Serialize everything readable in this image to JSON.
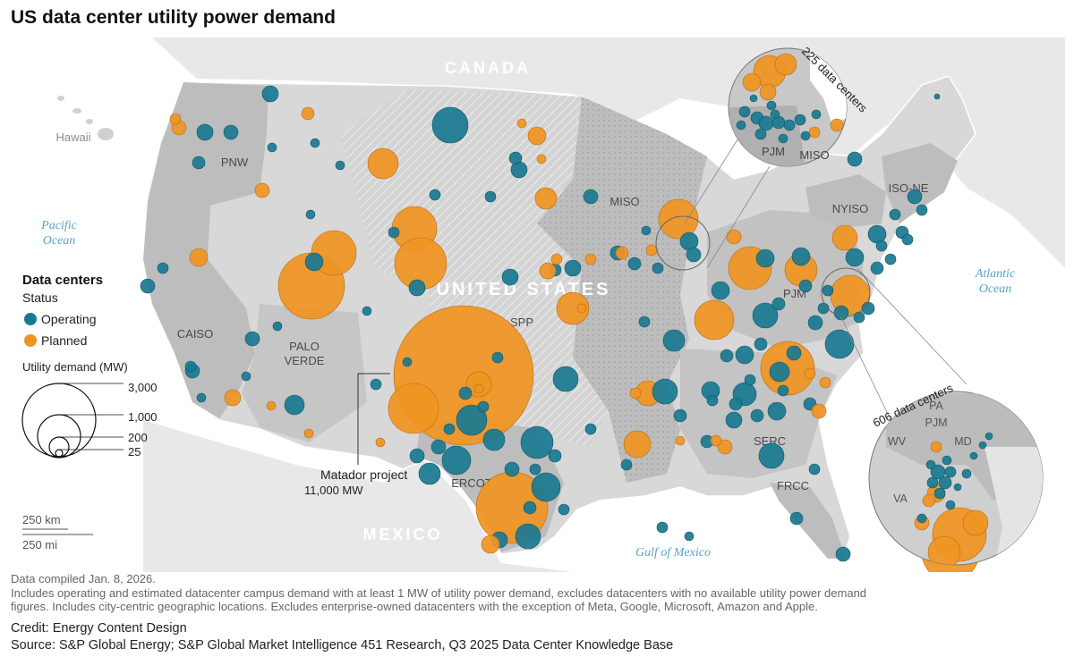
{
  "title": "US data center utility power demand",
  "labels": {
    "countries": {
      "canada": "CANADA",
      "mexico": "MEXICO",
      "us": "UNITED STATES"
    },
    "waters": {
      "pacific": "Pacific Ocean",
      "atlantic": "Atlantic Ocean",
      "gulf": "Gulf of Mexico"
    },
    "hawaii": "Hawaii",
    "regions": {
      "pnw": "PNW",
      "caiso": "CAISO",
      "palo_verde_1": "PALO",
      "palo_verde_2": "VERDE",
      "spp": "SPP",
      "miso": "MISO",
      "pjm": "PJM",
      "nyiso": "NYISO",
      "isone": "ISO-NE",
      "ercot": "ERCOT",
      "serc": "SERC",
      "frcc": "FRCC"
    }
  },
  "legend": {
    "heading": "Data centers",
    "status_label": "Status",
    "operating": "Operating",
    "planned": "Planned",
    "size_label": "Utility demand (MW)",
    "sizes": [
      "3,000",
      "1,000",
      "200",
      "25"
    ]
  },
  "annotation": {
    "name": "Matador project",
    "value": "11,000 MW"
  },
  "insets": {
    "top": {
      "count": "225 data centers",
      "labels": [
        "PJM",
        "MISO"
      ]
    },
    "bottom": {
      "count": "606 data centers",
      "labels": [
        "PA",
        "PJM",
        "WV",
        "MD",
        "VA"
      ]
    }
  },
  "scale": {
    "km": "250 km",
    "mi": "250 mi"
  },
  "footnotes": {
    "compiled": "Data compiled Jan. 8, 2026.",
    "line1": "Includes operating and estimated datacenter campus demand with at least 1 MW of utility power demand, excludes datacenters with no available utility power demand",
    "line2": "figures.  Includes city-centric geographic locations. Excludes enterprise-owned datacenters with the exception of Meta, Google, Microsoft, Amazon and Apple."
  },
  "credit": "Credit: Energy Content Design",
  "source": "Source: S&P Global Energy; S&P Global Market Intelligence 451 Research, Q3 2025 Data Center Knowledge Base",
  "colors": {
    "operating": "#1b7a91",
    "planned": "#ef9424",
    "land_us": "#d9d9d9",
    "land_foreign": "#e6e6e6",
    "region_dark": "#b9b9b9",
    "water_text": "#5aa4c8"
  }
}
